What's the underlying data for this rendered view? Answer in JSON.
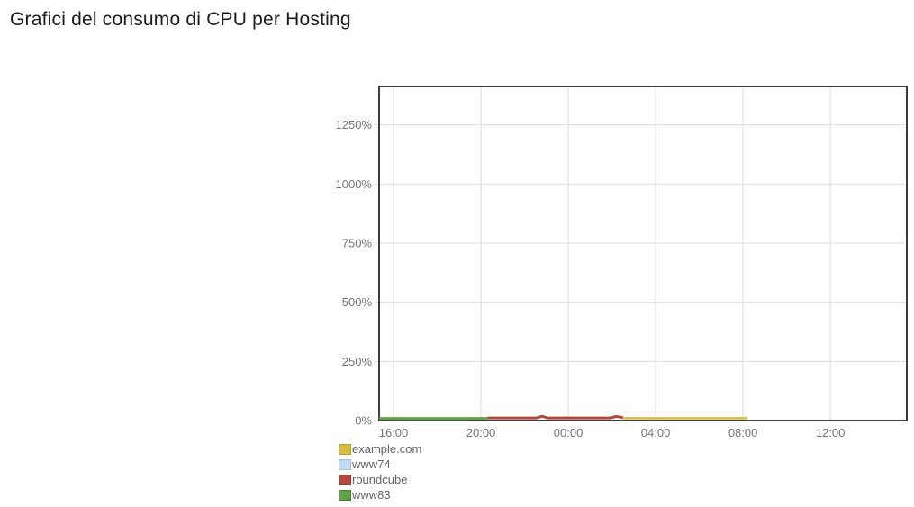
{
  "title": "Grafici del consumo di CPU per Hosting",
  "chart_data": {
    "type": "line",
    "title": "Grafici del consumo di CPU per Hosting",
    "xlabel": "",
    "ylabel": "",
    "grid": true,
    "legend_position": "bottom-left",
    "plot_border_color": "#3c3c3c",
    "gridline_color": "#dcdcdc",
    "x_axis": {
      "unit": "time-of-day",
      "min_hour": 15.34,
      "max_hour": 39.5,
      "ticks": [
        {
          "hour": 16,
          "label": "16:00"
        },
        {
          "hour": 20,
          "label": "20:00"
        },
        {
          "hour": 24,
          "label": "00:00"
        },
        {
          "hour": 28,
          "label": "04:00"
        },
        {
          "hour": 32,
          "label": "08:00"
        },
        {
          "hour": 36,
          "label": "12:00"
        }
      ]
    },
    "y_axis": {
      "unit": "% CPU",
      "min": 0,
      "max": 1412,
      "ticks": [
        {
          "value": 0,
          "label": "0%"
        },
        {
          "value": 250,
          "label": "250%"
        },
        {
          "value": 500,
          "label": "500%"
        },
        {
          "value": 750,
          "label": "750%"
        },
        {
          "value": 1000,
          "label": "1000%"
        },
        {
          "value": 1250,
          "label": "1250%"
        }
      ]
    },
    "series": [
      {
        "name": "example.com",
        "color": "#d6bc42",
        "border_color": "#b5a134",
        "stroke_width": 2.5,
        "points": [
          [
            26.5,
            10
          ],
          [
            32.2,
            10
          ]
        ]
      },
      {
        "name": "www74",
        "color": "#c3d9f0",
        "border_color": "#a8c0dc",
        "stroke_width": 2.5,
        "points": []
      },
      {
        "name": "roundcube",
        "color": "#b04a41",
        "border_color": "#8e3a33",
        "stroke_width": 3,
        "points": [
          [
            20.3,
            11
          ],
          [
            22.55,
            11
          ],
          [
            22.8,
            18
          ],
          [
            23.05,
            11
          ],
          [
            25.9,
            11
          ],
          [
            26.2,
            17
          ],
          [
            26.5,
            13
          ]
        ]
      },
      {
        "name": "www83",
        "color": "#62a04a",
        "border_color": "#4a8138",
        "stroke_width": 3,
        "points": [
          [
            15.34,
            9
          ],
          [
            20.3,
            9
          ]
        ]
      }
    ]
  }
}
